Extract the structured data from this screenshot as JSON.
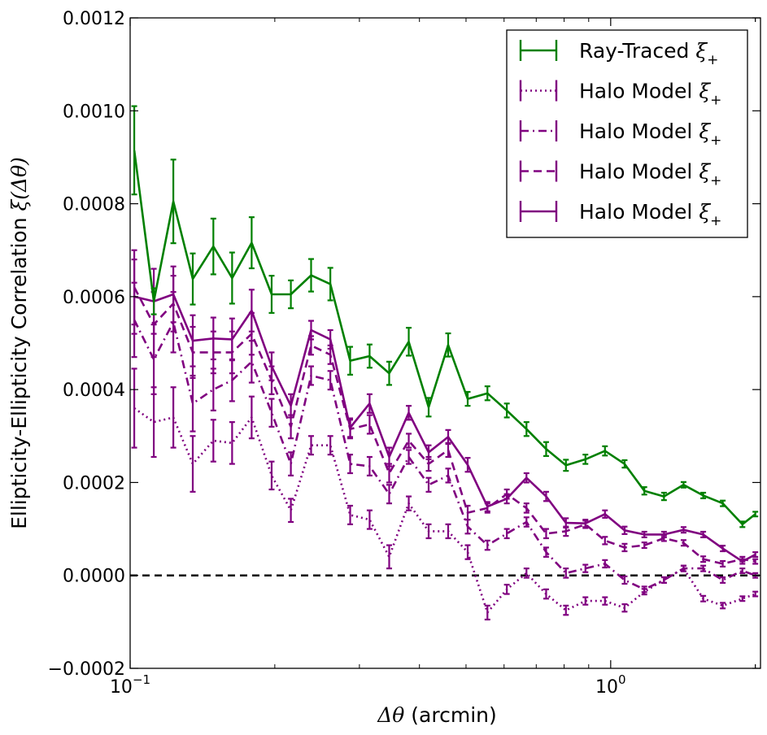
{
  "chart_data": {
    "type": "line",
    "xscale": "log",
    "xlim": [
      0.1,
      2.05
    ],
    "ylim": [
      -0.0002,
      0.0012
    ],
    "xlabel": {
      "symbol": "Δθ",
      "text": " (arcmin)"
    },
    "ylabel": {
      "text": "Ellipticity-Ellipticity Correlation ",
      "symbol": "ξ(Δθ)"
    },
    "x_ticks": [
      {
        "value": 0.1,
        "base": "10",
        "exp": "−1"
      },
      {
        "value": 1.0,
        "base": "10",
        "exp": "0"
      }
    ],
    "y_ticks": [
      {
        "value": -0.0002,
        "label": "−0.0002"
      },
      {
        "value": 0.0,
        "label": "0.0000"
      },
      {
        "value": 0.0002,
        "label": "0.0002"
      },
      {
        "value": 0.0004,
        "label": "0.0004"
      },
      {
        "value": 0.0006,
        "label": "0.0006"
      },
      {
        "value": 0.0008,
        "label": "0.0008"
      },
      {
        "value": 0.001,
        "label": "0.0010"
      },
      {
        "value": 0.0012,
        "label": "0.0012"
      }
    ],
    "reference_line": {
      "y": 0.0,
      "style": "dashed",
      "color": "#000000"
    },
    "legend_position": "top-right",
    "x": [
      0.102,
      0.112,
      0.123,
      0.135,
      0.149,
      0.163,
      0.179,
      0.197,
      0.216,
      0.238,
      0.261,
      0.287,
      0.315,
      0.346,
      0.38,
      0.418,
      0.459,
      0.504,
      0.554,
      0.608,
      0.668,
      0.734,
      0.807,
      0.886,
      0.973,
      1.069,
      1.175,
      1.291,
      1.418,
      1.558,
      1.711,
      1.88,
      2.0
    ],
    "series": [
      {
        "name": "Ray-Traced",
        "symbol": "ξ",
        "sub": "+",
        "color": "#008000",
        "dash": "solid",
        "y": [
          0.000915,
          0.00059,
          0.000805,
          0.000638,
          0.000708,
          0.00064,
          0.000716,
          0.000605,
          0.000605,
          0.000646,
          0.000627,
          0.000462,
          0.000472,
          0.000435,
          0.000503,
          0.000362,
          0.000496,
          0.00038,
          0.000392,
          0.000355,
          0.000315,
          0.000272,
          0.000237,
          0.00025,
          0.000268,
          0.00024,
          0.000182,
          0.00017,
          0.000195,
          0.000172,
          0.000155,
          0.00011,
          0.000132
        ],
        "err": [
          9.5e-05,
          2.8e-05,
          9e-05,
          5.5e-05,
          6e-05,
          5.5e-05,
          5.5e-05,
          4e-05,
          3e-05,
          3.5e-05,
          3.5e-05,
          3e-05,
          2.5e-05,
          2.5e-05,
          3e-05,
          2e-05,
          2.5e-05,
          1.5e-05,
          1.5e-05,
          1.5e-05,
          1.5e-05,
          1.5e-05,
          1.2e-05,
          1e-05,
          1e-05,
          8e-06,
          8e-06,
          8e-06,
          6e-06,
          6e-06,
          6e-06,
          6e-06,
          5e-06
        ]
      },
      {
        "name": "Halo Model",
        "symbol": "ξ",
        "sub": "+",
        "color": "#800080",
        "dash": "dotted",
        "y": [
          0.00036,
          0.00033,
          0.00034,
          0.00024,
          0.00029,
          0.000285,
          0.00034,
          0.000215,
          0.00014,
          0.00028,
          0.00028,
          0.00013,
          0.00012,
          4e-05,
          0.000155,
          9.5e-05,
          9.5e-05,
          5e-05,
          -8e-05,
          -3e-05,
          5e-06,
          -4e-05,
          -7.5e-05,
          -5.5e-05,
          -5.5e-05,
          -7e-05,
          -3.5e-05,
          -1e-05,
          1.5e-05,
          -5e-05,
          -6.5e-05,
          -5e-05,
          -4e-05
        ],
        "err": [
          8.5e-05,
          7.5e-05,
          6.5e-05,
          6e-05,
          4.5e-05,
          4.5e-05,
          4.5e-05,
          3e-05,
          2.5e-05,
          2e-05,
          2e-05,
          2e-05,
          2e-05,
          2.5e-05,
          1.5e-05,
          1.5e-05,
          1.5e-05,
          1.5e-05,
          1.5e-05,
          1e-05,
          1e-05,
          1e-05,
          1e-05,
          8e-06,
          8e-06,
          8e-06,
          6e-06,
          6e-06,
          6e-06,
          6e-06,
          6e-06,
          5e-06,
          5e-06
        ]
      },
      {
        "name": "Halo Model",
        "symbol": "ξ",
        "sub": "+",
        "color": "#800080",
        "dash": "dashdot",
        "y": [
          0.00055,
          0.000465,
          0.000545,
          0.00037,
          0.0004,
          0.00042,
          0.00046,
          0.00035,
          0.00024,
          0.00043,
          0.00042,
          0.00024,
          0.000235,
          0.000175,
          0.000255,
          0.000195,
          0.000215,
          0.000105,
          6.5e-05,
          9e-05,
          0.000115,
          5e-05,
          5e-06,
          1.5e-05,
          2.5e-05,
          -1e-05,
          -3e-05,
          -1e-05,
          1.5e-05,
          1.5e-05,
          -1e-05,
          1e-05,
          0.0
        ],
        "err": [
          8e-05,
          7.5e-05,
          6.5e-05,
          6e-05,
          4.5e-05,
          4.5e-05,
          4.5e-05,
          3e-05,
          2.5e-05,
          2e-05,
          2e-05,
          2e-05,
          2e-05,
          2e-05,
          1.5e-05,
          1.5e-05,
          1.5e-05,
          1.5e-05,
          1e-05,
          1e-05,
          1e-05,
          1e-05,
          1e-05,
          8e-06,
          8e-06,
          8e-06,
          6e-06,
          6e-06,
          6e-06,
          6e-06,
          6e-06,
          5e-06,
          5e-06
        ]
      },
      {
        "name": "Halo Model",
        "symbol": "ξ",
        "sub": "+",
        "color": "#800080",
        "dash": "dashed",
        "y": [
          0.00062,
          0.00054,
          0.000585,
          0.00048,
          0.00048,
          0.00048,
          0.00052,
          0.00042,
          0.00032,
          0.000495,
          0.000475,
          0.000315,
          0.000325,
          0.00022,
          0.00029,
          0.00024,
          0.00027,
          0.000135,
          0.000145,
          0.000175,
          0.000145,
          9e-05,
          9.5e-05,
          0.00011,
          7.5e-05,
          6e-05,
          6.5e-05,
          8e-05,
          7e-05,
          3.5e-05,
          2.5e-05,
          3.5e-05,
          3e-05
        ],
        "err": [
          8e-05,
          7e-05,
          6e-05,
          5.5e-05,
          4.5e-05,
          4.5e-05,
          4.5e-05,
          3e-05,
          2.5e-05,
          2e-05,
          2e-05,
          2e-05,
          2e-05,
          2e-05,
          1.5e-05,
          1.5e-05,
          1.5e-05,
          1.5e-05,
          1e-05,
          1e-05,
          1e-05,
          1e-05,
          1e-05,
          8e-06,
          8e-06,
          8e-06,
          6e-06,
          6e-06,
          6e-06,
          6e-06,
          6e-06,
          5e-06,
          5e-06
        ]
      },
      {
        "name": "Halo Model",
        "symbol": "ξ",
        "sub": "+",
        "color": "#800080",
        "dash": "solid",
        "y": [
          0.0006,
          0.00059,
          0.000605,
          0.000505,
          0.00051,
          0.000508,
          0.00057,
          0.00045,
          0.000365,
          0.000528,
          0.000508,
          0.000318,
          0.00037,
          0.000255,
          0.00035,
          0.000265,
          0.000298,
          0.000238,
          0.000148,
          0.000165,
          0.00021,
          0.00017,
          0.000113,
          0.000112,
          0.000132,
          9.7e-05,
          8.8e-05,
          8.8e-05,
          9.8e-05,
          8.8e-05,
          5.8e-05,
          3e-05,
          4.5e-05
        ],
        "err": [
          8e-05,
          7e-05,
          6e-05,
          5.5e-05,
          4.5e-05,
          4.5e-05,
          4.5e-05,
          3e-05,
          2.5e-05,
          2e-05,
          2e-05,
          2e-05,
          2e-05,
          2e-05,
          1.5e-05,
          1.5e-05,
          1.5e-05,
          1.5e-05,
          1e-05,
          1e-05,
          1e-05,
          1e-05,
          1e-05,
          8e-06,
          8e-06,
          8e-06,
          6e-06,
          6e-06,
          6e-06,
          6e-06,
          6e-06,
          5e-06,
          5e-06
        ]
      }
    ]
  }
}
